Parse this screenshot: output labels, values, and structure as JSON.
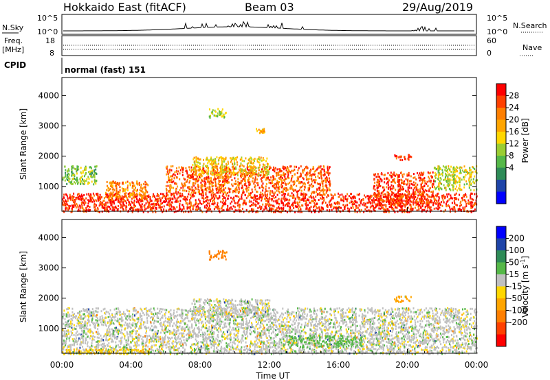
{
  "header": {
    "station": "Hokkaido East (fitACF)",
    "beam": "Beam 03",
    "date": "29/Aug/2019"
  },
  "top_panels": {
    "nsky_label": "N.Sky",
    "nsearch_label": "N.Search",
    "power_ticks": [
      "10^5",
      "10^0"
    ],
    "power_ticks_right": [
      "10^5",
      "10^0"
    ],
    "freq_label_1": "Freq.",
    "freq_label_2": "[MHz]",
    "freq_ticks": [
      "18",
      "8"
    ],
    "nave_label": "Nave",
    "nave_ticks": [
      "60",
      "0"
    ],
    "cpid_label": "CPID",
    "cpid_value": "normal (fast) 151"
  },
  "x_axis": {
    "label": "Time UT",
    "ticks": [
      "00:00",
      "04:00",
      "08:00",
      "12:00",
      "16:00",
      "20:00",
      "00:00"
    ]
  },
  "power_colorbar": {
    "label": "Power [dB]",
    "ticks": [
      "4",
      "8",
      "12",
      "16",
      "20",
      "24",
      "28"
    ],
    "colors": [
      "#0000ff",
      "#1e44a8",
      "#2e8b57",
      "#55b848",
      "#9acd32",
      "#ffd700",
      "#ffa500",
      "#ff7f00",
      "#ff4000",
      "#ff0000"
    ]
  },
  "velocity_colorbar": {
    "label": "Velocity [m s",
    "label_sup": "-1",
    "label_end": "]",
    "ticks": [
      "200",
      "100",
      "50",
      "15",
      "-15",
      "-50",
      "-100",
      "-200"
    ],
    "colors": [
      "#0000ff",
      "#1e44a8",
      "#2e8b57",
      "#55b848",
      "#c0c0c0",
      "#ffd700",
      "#ffa500",
      "#ff7f00",
      "#ff4000",
      "#ff0000"
    ]
  },
  "chart_data": [
    {
      "type": "heatmap",
      "title": "Power",
      "ylabel": "Slant Range [km]",
      "xlabel": "Time UT",
      "x_range_hours": [
        0,
        24
      ],
      "y_range_km": [
        180,
        4600
      ],
      "y_ticks": [
        1000,
        2000,
        3000,
        4000
      ],
      "colorbar": "Power [dB]",
      "value_range": [
        0,
        30
      ],
      "regions": [
        {
          "t_start": 0.0,
          "t_end": 24.0,
          "r_start": 180,
          "r_end": 800,
          "value": 27
        },
        {
          "t_start": 2.5,
          "t_end": 5.0,
          "r_start": 600,
          "r_end": 1200,
          "value": 22
        },
        {
          "t_start": 0.0,
          "t_end": 2.0,
          "r_start": 1100,
          "r_end": 1700,
          "value": 12
        },
        {
          "t_start": 6.0,
          "t_end": 15.5,
          "r_start": 800,
          "r_end": 1700,
          "value": 24
        },
        {
          "t_start": 7.5,
          "t_end": 12.0,
          "r_start": 1400,
          "r_end": 2000,
          "value": 17
        },
        {
          "t_start": 18.0,
          "t_end": 21.5,
          "r_start": 400,
          "r_end": 1500,
          "value": 26
        },
        {
          "t_start": 21.5,
          "t_end": 24.0,
          "r_start": 900,
          "r_end": 1700,
          "value": 15
        },
        {
          "t_start": 8.5,
          "t_end": 9.5,
          "r_start": 3300,
          "r_end": 3600,
          "value": 14
        },
        {
          "t_start": 11.2,
          "t_end": 11.7,
          "r_start": 2800,
          "r_end": 2950,
          "value": 18
        },
        {
          "t_start": 19.2,
          "t_end": 20.2,
          "r_start": 1900,
          "r_end": 2100,
          "value": 26
        }
      ]
    },
    {
      "type": "heatmap",
      "title": "Velocity",
      "ylabel": "Slant Range [km]",
      "xlabel": "Time UT",
      "x_range_hours": [
        0,
        24
      ],
      "y_range_km": [
        180,
        4600
      ],
      "y_ticks": [
        1000,
        2000,
        3000,
        4000
      ],
      "colorbar": "Velocity [m s-1]",
      "value_range": [
        -250,
        250
      ],
      "regions": [
        {
          "t_start": 0.0,
          "t_end": 24.0,
          "r_start": 180,
          "r_end": 1700,
          "value": 0
        },
        {
          "t_start": 13.0,
          "t_end": 17.5,
          "r_start": 400,
          "r_end": 800,
          "value": 30
        },
        {
          "t_start": 0.0,
          "t_end": 5.0,
          "r_start": 180,
          "r_end": 350,
          "value": -40
        },
        {
          "t_start": 7.5,
          "t_end": 12.0,
          "r_start": 1400,
          "r_end": 2000,
          "value": 0
        },
        {
          "t_start": 8.5,
          "t_end": 9.5,
          "r_start": 3300,
          "r_end": 3600,
          "value": -120
        },
        {
          "t_start": 19.2,
          "t_end": 20.2,
          "r_start": 1900,
          "r_end": 2100,
          "value": -80
        }
      ]
    }
  ]
}
